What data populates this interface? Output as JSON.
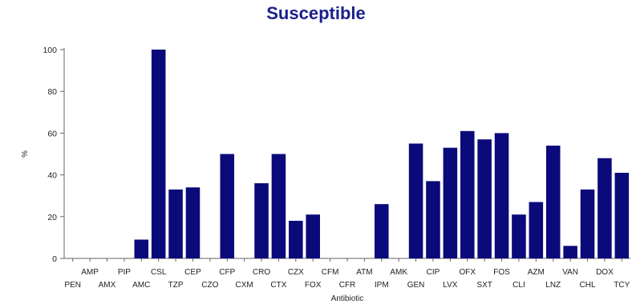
{
  "chart_data": {
    "type": "bar",
    "title": "Susceptible",
    "xlabel": "Antibiotic",
    "ylabel": "%",
    "ylim": [
      0,
      100
    ],
    "yticks": [
      0,
      20,
      40,
      60,
      80,
      100
    ],
    "grid": false,
    "bar_color": "#0a0a7a",
    "categories": [
      "PEN",
      "AMP",
      "AMX",
      "PIP",
      "AMC",
      "CSL",
      "TZP",
      "CEP",
      "CZO",
      "CFP",
      "CXM",
      "CRO",
      "CTX",
      "CZX",
      "FOX",
      "CFM",
      "CFR",
      "ATM",
      "IPM",
      "AMK",
      "GEN",
      "CIP",
      "LVX",
      "OFX",
      "SXT",
      "FOS",
      "CLI",
      "AZM",
      "LNZ",
      "VAN",
      "CHL",
      "DOX",
      "TCY"
    ],
    "values": [
      0,
      0,
      0,
      0,
      9,
      100,
      33,
      34,
      0,
      50,
      0,
      36,
      50,
      18,
      21,
      0,
      0,
      0,
      26,
      0,
      55,
      37,
      53,
      61,
      57,
      60,
      21,
      27,
      54,
      6,
      33,
      48,
      41
    ]
  }
}
